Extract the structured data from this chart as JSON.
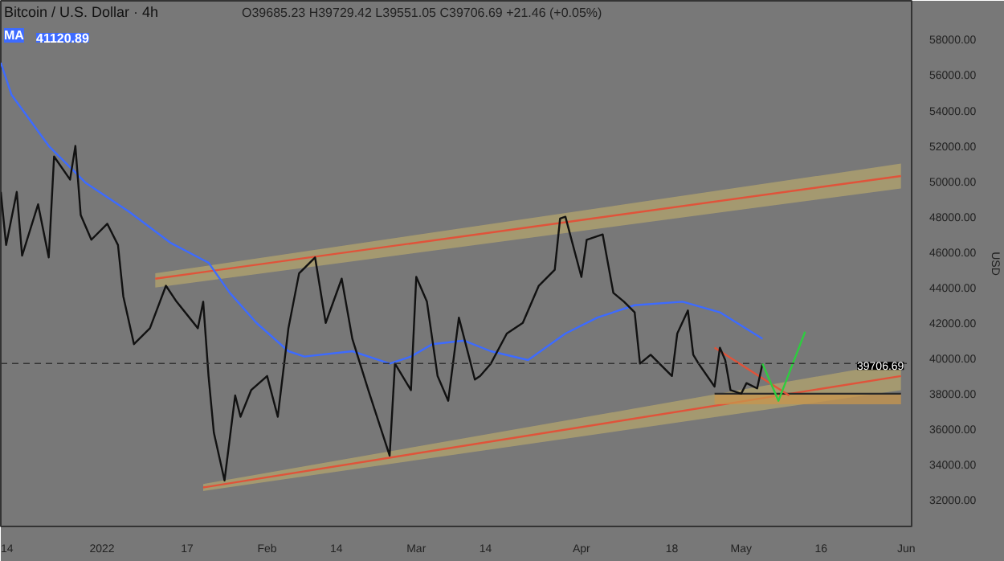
{
  "chart_data": {
    "type": "line",
    "title": "Bitcoin / U.S. Dollar · 4h",
    "ylabel": "USD",
    "annotations": [
      "O39685.23 H39729.42 L39551.05 C39706.69 +21.46 (+0.05%)",
      "41120.89"
    ],
    "xlim": [
      "2021-12-13",
      "2022-06-02"
    ],
    "xticks": [
      {
        "value": "2021-12-14",
        "label": "14"
      },
      {
        "value": "2022-01-01",
        "label": "2022"
      },
      {
        "value": "2022-01-17",
        "label": "17"
      },
      {
        "value": "2022-02-01",
        "label": "Feb"
      },
      {
        "value": "2022-02-14",
        "label": "14"
      },
      {
        "value": "2022-03-01",
        "label": "Mar"
      },
      {
        "value": "2022-03-14",
        "label": "14"
      },
      {
        "value": "2022-04-01",
        "label": "Apr"
      },
      {
        "value": "2022-04-18",
        "label": "18"
      },
      {
        "value": "2022-05-01",
        "label": "May"
      },
      {
        "value": "2022-05-16",
        "label": "16"
      },
      {
        "value": "2022-06-01",
        "label": "Jun"
      }
    ],
    "ylim": [
      30500,
      60200
    ],
    "yticks": [
      {
        "value": 32000,
        "label": "32000.00"
      },
      {
        "value": 34000,
        "label": "34000.00"
      },
      {
        "value": 36000,
        "label": "36000.00"
      },
      {
        "value": 38000,
        "label": "38000.00"
      },
      {
        "value": 40000,
        "label": "40000.00"
      },
      {
        "value": 42000,
        "label": "42000.00"
      },
      {
        "value": 44000,
        "label": "44000.00"
      },
      {
        "value": 46000,
        "label": "46000.00"
      },
      {
        "value": 48000,
        "label": "48000.00"
      },
      {
        "value": 50000,
        "label": "50000.00"
      },
      {
        "value": 52000,
        "label": "52000.00"
      },
      {
        "value": 54000,
        "label": "54000.00"
      },
      {
        "value": 56000,
        "label": "56000.00"
      },
      {
        "value": 58000,
        "label": "58000.00"
      }
    ],
    "ref_lines": [
      {
        "axis": "y",
        "value": 39706.69,
        "label": "39706.69",
        "color": "#333333",
        "line_style": "dashed"
      }
    ],
    "grid": false,
    "series": [
      {
        "type": "line",
        "color": "#e0533a",
        "x": [
          "2022-01-11",
          "2022-05-31"
        ],
        "values": [
          44500,
          50300
        ],
        "lower": [
          44000,
          49600
        ],
        "upper": [
          44800,
          51000
        ]
      },
      {
        "type": "line",
        "color": "#e0533a",
        "x": [
          "2022-01-20",
          "2022-05-31"
        ],
        "values": [
          32700,
          39000
        ],
        "lower": [
          32500,
          38200
        ],
        "upper": [
          32900,
          39800
        ]
      },
      {
        "type": "line",
        "color": "#2a2a2a",
        "x": [
          "2022-04-26",
          "2022-05-31"
        ],
        "values": [
          38000,
          38000
        ],
        "lower": [
          37400,
          37400
        ],
        "upper": [
          38000,
          38000
        ]
      },
      {
        "type": "line",
        "color": "#e0533a",
        "x": [
          "2022-04-26",
          "2022-05-10"
        ],
        "values": [
          40600,
          37900
        ]
      },
      {
        "name": "MA",
        "color": "#3d6bff",
        "x": [
          "2021-12-13",
          "2021-12-15",
          "2021-12-22",
          "2021-12-29",
          "2022-01-06",
          "2022-01-14",
          "2022-01-21",
          "2022-01-25",
          "2022-01-30",
          "2022-02-05",
          "2022-02-08",
          "2022-02-17",
          "2022-02-24",
          "2022-02-28",
          "2022-03-04",
          "2022-03-10",
          "2022-03-15",
          "2022-03-22",
          "2022-03-29",
          "2022-04-04",
          "2022-04-11",
          "2022-04-20",
          "2022-04-27",
          "2022-05-05"
        ],
        "values": [
          56700,
          54900,
          52000,
          49900,
          48300,
          46500,
          45400,
          43700,
          42000,
          40400,
          40100,
          40400,
          39700,
          40100,
          40800,
          41000,
          40400,
          39900,
          41400,
          42300,
          43000,
          43200,
          42600,
          41100
        ]
      },
      {
        "color": "#111111",
        "x": [
          "2021-12-13",
          "2021-12-14",
          "2021-12-16",
          "2021-12-17",
          "2021-12-20",
          "2021-12-22",
          "2021-12-23",
          "2021-12-26",
          "2021-12-27",
          "2021-12-28",
          "2021-12-30",
          "2022-01-02",
          "2022-01-04",
          "2022-01-05",
          "2022-01-07",
          "2022-01-10",
          "2022-01-13",
          "2022-01-15",
          "2022-01-19",
          "2022-01-20",
          "2022-01-21",
          "2022-01-22",
          "2022-01-24",
          "2022-01-26",
          "2022-01-27",
          "2022-01-29",
          "2022-02-01",
          "2022-02-03",
          "2022-02-05",
          "2022-02-07",
          "2022-02-10",
          "2022-02-12",
          "2022-02-15",
          "2022-02-17",
          "2022-02-20",
          "2022-02-24",
          "2022-02-25",
          "2022-02-28",
          "2022-03-01",
          "2022-03-03",
          "2022-03-05",
          "2022-03-07",
          "2022-03-09",
          "2022-03-12",
          "2022-03-13",
          "2022-03-15",
          "2022-03-18",
          "2022-03-21",
          "2022-03-24",
          "2022-03-27",
          "2022-03-28",
          "2022-03-29",
          "2022-04-01",
          "2022-04-02",
          "2022-04-05",
          "2022-04-07",
          "2022-04-09",
          "2022-04-11",
          "2022-04-12",
          "2022-04-14",
          "2022-04-18",
          "2022-04-19",
          "2022-04-21",
          "2022-04-22",
          "2022-04-23",
          "2022-04-26",
          "2022-04-27",
          "2022-04-28",
          "2022-04-29",
          "2022-05-01",
          "2022-05-02",
          "2022-05-04",
          "2022-05-05"
        ],
        "values": [
          49400,
          46400,
          49400,
          45800,
          48700,
          45700,
          51400,
          50100,
          52000,
          48100,
          46700,
          47600,
          46400,
          43500,
          40800,
          41700,
          44100,
          43200,
          41700,
          43200,
          39000,
          35800,
          33100,
          37900,
          36700,
          38200,
          39000,
          36700,
          41700,
          44800,
          45700,
          42000,
          44500,
          41100,
          38200,
          34500,
          39700,
          38200,
          44600,
          43200,
          39000,
          37600,
          42300,
          38800,
          39000,
          39700,
          41400,
          42000,
          44100,
          45000,
          47900,
          48000,
          44600,
          46700,
          47000,
          43700,
          43200,
          42600,
          39700,
          40200,
          39000,
          41400,
          42700,
          40200,
          39700,
          38400,
          40600,
          39900,
          38200,
          38000,
          38600,
          38300,
          39700
        ]
      },
      {
        "type": "line",
        "color": "#2ecc40",
        "x": [
          "2022-05-05",
          "2022-05-08",
          "2022-05-13"
        ],
        "values": [
          39700,
          37600,
          41500
        ]
      }
    ]
  }
}
